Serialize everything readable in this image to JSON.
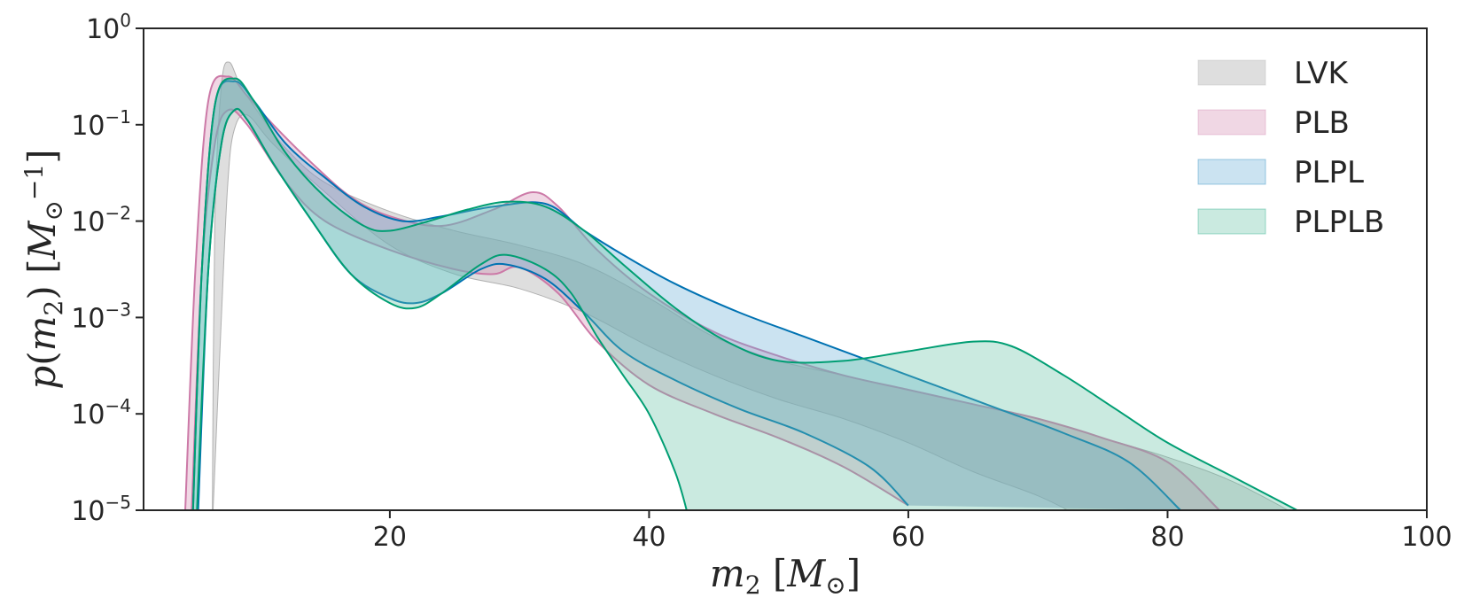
{
  "chart_data": {
    "type": "area",
    "title": "",
    "xlabel_parts": {
      "var": "m",
      "sub": "2",
      "units_open": " [",
      "units_var": "M",
      "units_sub": "⊙",
      "units_close": "]"
    },
    "ylabel_parts": {
      "p": "p",
      "open": "(",
      "var": "m",
      "sub": "2",
      "close": ")",
      "units_open": " [",
      "units_var": "M",
      "units_sub": "⊙",
      "units_sup": "−1",
      "units_close": "]"
    },
    "xlim": [
      1,
      100
    ],
    "ylim_log10": [
      -5,
      0
    ],
    "yscale": "log",
    "x_ticks": [
      {
        "value": 20,
        "label": "20"
      },
      {
        "value": 40,
        "label": "40"
      },
      {
        "value": 60,
        "label": "60"
      },
      {
        "value": 80,
        "label": "80"
      },
      {
        "value": 100,
        "label": "100"
      }
    ],
    "y_ticks": [
      {
        "log": 0,
        "base": "10",
        "exp": "0"
      },
      {
        "log": -1,
        "base": "10",
        "exp": "−1"
      },
      {
        "log": -2,
        "base": "10",
        "exp": "−2"
      },
      {
        "log": -3,
        "base": "10",
        "exp": "−3"
      },
      {
        "log": -4,
        "base": "10",
        "exp": "−4"
      },
      {
        "log": -5,
        "base": "10",
        "exp": "−5"
      }
    ],
    "legend_position": "top-right",
    "series": [
      {
        "name": "LVK",
        "fill": "#c8c8c8",
        "fill_opacity": 0.6,
        "stroke": "#b0b0b0",
        "stroke_width": 1,
        "lower": [
          [
            6.3,
            -5.2
          ],
          [
            7,
            -3
          ],
          [
            7.5,
            -1.6
          ],
          [
            8,
            -1.05
          ],
          [
            9,
            -0.9
          ],
          [
            11,
            -1.2
          ],
          [
            15,
            -1.7
          ],
          [
            20,
            -2.25
          ],
          [
            25,
            -2.55
          ],
          [
            30,
            -2.7
          ],
          [
            35,
            -2.95
          ],
          [
            40,
            -3.3
          ],
          [
            45,
            -3.6
          ],
          [
            50,
            -3.85
          ],
          [
            55,
            -4.05
          ],
          [
            60,
            -4.3
          ],
          [
            65,
            -4.6
          ],
          [
            70,
            -4.85
          ],
          [
            73,
            -5.05
          ]
        ],
        "upper": [
          [
            6.3,
            -5.2
          ],
          [
            6.5,
            -2
          ],
          [
            7,
            -0.6
          ],
          [
            7.6,
            -0.35
          ],
          [
            8.5,
            -0.6
          ],
          [
            10,
            -0.9
          ],
          [
            12,
            -1.25
          ],
          [
            15,
            -1.6
          ],
          [
            20,
            -1.9
          ],
          [
            25,
            -2.1
          ],
          [
            30,
            -2.25
          ],
          [
            35,
            -2.45
          ],
          [
            40,
            -2.8
          ],
          [
            45,
            -3.2
          ],
          [
            50,
            -3.45
          ],
          [
            55,
            -3.6
          ],
          [
            60,
            -3.75
          ],
          [
            65,
            -3.9
          ],
          [
            70,
            -4.05
          ],
          [
            75,
            -4.25
          ],
          [
            80,
            -4.45
          ],
          [
            85,
            -4.7
          ],
          [
            90,
            -5.05
          ]
        ]
      },
      {
        "name": "PLB",
        "fill": "#cc79a7",
        "fill_opacity": 0.3,
        "stroke": "#cc79a7",
        "stroke_width": 2,
        "lower": [
          [
            4.7,
            -5.05
          ],
          [
            5.5,
            -2.5
          ],
          [
            6.5,
            -1.2
          ],
          [
            7.5,
            -0.85
          ],
          [
            9,
            -1.0
          ],
          [
            12,
            -1.6
          ],
          [
            15,
            -2.0
          ],
          [
            20,
            -2.3
          ],
          [
            25,
            -2.5
          ],
          [
            28,
            -2.55
          ],
          [
            30,
            -2.48
          ],
          [
            33,
            -2.75
          ],
          [
            36,
            -3.25
          ],
          [
            40,
            -3.7
          ],
          [
            45,
            -4.0
          ],
          [
            50,
            -4.25
          ],
          [
            55,
            -4.55
          ],
          [
            60,
            -4.95
          ]
        ],
        "upper": [
          [
            4.2,
            -5.05
          ],
          [
            5,
            -2.5
          ],
          [
            6,
            -0.75
          ],
          [
            7.5,
            -0.5
          ],
          [
            9,
            -0.7
          ],
          [
            11,
            -1.0
          ],
          [
            14,
            -1.4
          ],
          [
            17,
            -1.75
          ],
          [
            20,
            -1.95
          ],
          [
            24,
            -2.05
          ],
          [
            28,
            -1.88
          ],
          [
            31,
            -1.7
          ],
          [
            33,
            -1.85
          ],
          [
            36,
            -2.3
          ],
          [
            40,
            -2.75
          ],
          [
            45,
            -3.15
          ],
          [
            50,
            -3.4
          ],
          [
            55,
            -3.6
          ],
          [
            60,
            -3.75
          ],
          [
            65,
            -3.9
          ],
          [
            70,
            -4.05
          ],
          [
            75,
            -4.25
          ],
          [
            80,
            -4.5
          ],
          [
            84,
            -5.0
          ]
        ]
      },
      {
        "name": "PLPL",
        "fill": "#6baed6",
        "fill_opacity": 0.35,
        "stroke": "#0072b2",
        "stroke_width": 2,
        "lower": [
          [
            5.2,
            -5.05
          ],
          [
            6,
            -2.5
          ],
          [
            7,
            -1.2
          ],
          [
            8,
            -0.85
          ],
          [
            9,
            -0.95
          ],
          [
            11,
            -1.4
          ],
          [
            14,
            -2.0
          ],
          [
            17,
            -2.55
          ],
          [
            20,
            -2.8
          ],
          [
            22,
            -2.85
          ],
          [
            24,
            -2.75
          ],
          [
            27,
            -2.5
          ],
          [
            29,
            -2.45
          ],
          [
            32,
            -2.6
          ],
          [
            35,
            -2.95
          ],
          [
            38,
            -3.35
          ],
          [
            42,
            -3.65
          ],
          [
            47,
            -3.95
          ],
          [
            52,
            -4.2
          ],
          [
            57,
            -4.55
          ],
          [
            60,
            -4.95
          ]
        ],
        "upper": [
          [
            4.8,
            -5.05
          ],
          [
            5.5,
            -2.5
          ],
          [
            6.5,
            -0.8
          ],
          [
            8,
            -0.55
          ],
          [
            9.5,
            -0.75
          ],
          [
            12,
            -1.2
          ],
          [
            15,
            -1.55
          ],
          [
            18,
            -1.85
          ],
          [
            21,
            -2.0
          ],
          [
            24,
            -1.95
          ],
          [
            28,
            -1.85
          ],
          [
            32,
            -1.82
          ],
          [
            35,
            -2.1
          ],
          [
            38,
            -2.35
          ],
          [
            42,
            -2.65
          ],
          [
            47,
            -2.95
          ],
          [
            52,
            -3.2
          ],
          [
            57,
            -3.45
          ],
          [
            62,
            -3.7
          ],
          [
            67,
            -3.95
          ],
          [
            72,
            -4.2
          ],
          [
            77,
            -4.5
          ],
          [
            81,
            -5.0
          ]
        ]
      },
      {
        "name": "PLPLB",
        "fill": "#66c2a5",
        "fill_opacity": 0.35,
        "stroke": "#009e73",
        "stroke_width": 2,
        "lower": [
          [
            5.1,
            -5.05
          ],
          [
            6,
            -2.5
          ],
          [
            7,
            -1.2
          ],
          [
            8,
            -0.85
          ],
          [
            9,
            -0.95
          ],
          [
            11,
            -1.4
          ],
          [
            14,
            -2.0
          ],
          [
            17,
            -2.55
          ],
          [
            20,
            -2.85
          ],
          [
            22,
            -2.9
          ],
          [
            24,
            -2.75
          ],
          [
            27,
            -2.45
          ],
          [
            29,
            -2.35
          ],
          [
            32,
            -2.5
          ],
          [
            34,
            -2.75
          ],
          [
            36,
            -3.2
          ],
          [
            38,
            -3.6
          ],
          [
            40,
            -4.0
          ],
          [
            42,
            -4.6
          ],
          [
            43,
            -5.05
          ]
        ],
        "upper": [
          [
            4.8,
            -5.05
          ],
          [
            5.5,
            -2.5
          ],
          [
            6.5,
            -0.8
          ],
          [
            8,
            -0.52
          ],
          [
            9.5,
            -0.75
          ],
          [
            12,
            -1.3
          ],
          [
            15,
            -1.75
          ],
          [
            18,
            -2.05
          ],
          [
            20,
            -2.1
          ],
          [
            23,
            -2.0
          ],
          [
            26,
            -1.88
          ],
          [
            29,
            -1.8
          ],
          [
            32,
            -1.85
          ],
          [
            35,
            -2.1
          ],
          [
            38,
            -2.45
          ],
          [
            42,
            -2.9
          ],
          [
            46,
            -3.25
          ],
          [
            50,
            -3.45
          ],
          [
            55,
            -3.45
          ],
          [
            60,
            -3.35
          ],
          [
            65,
            -3.25
          ],
          [
            68,
            -3.3
          ],
          [
            72,
            -3.6
          ],
          [
            76,
            -3.95
          ],
          [
            80,
            -4.3
          ],
          [
            85,
            -4.65
          ],
          [
            90,
            -5.0
          ]
        ]
      }
    ]
  }
}
